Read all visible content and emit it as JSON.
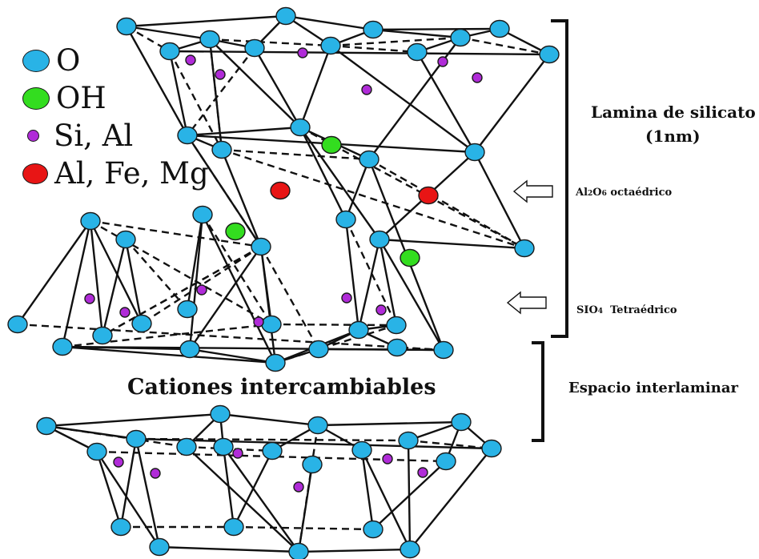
{
  "colors": {
    "oxygen": "#29b3e6",
    "hydroxyl": "#33dd1f",
    "si_al": "#b02bd8",
    "al_fe_mg": "#e81515",
    "bonds": "#111111"
  },
  "legend": [
    {
      "key": "oxygen",
      "label": "O"
    },
    {
      "key": "hydroxyl",
      "label": "OH"
    },
    {
      "key": "si_al",
      "label": "Si, Al"
    },
    {
      "key": "al_fe_mg",
      "label": "Al, Fe, Mg"
    }
  ],
  "labels": {
    "lamina_line1": "Lamina de silicato",
    "lamina_line2": "(1nm)",
    "octa_prefix": "Al",
    "octa_sub1": "2",
    "octa_mid": "O",
    "octa_sub2": "6",
    "octa_suffix": " octaédrico",
    "tetra_prefix": "SIO",
    "tetra_sub": "4",
    "tetra_suffix": "  Tetraédrico",
    "cations": "Cationes intercambiables",
    "interlaminar": "Espacio interlaminar"
  }
}
